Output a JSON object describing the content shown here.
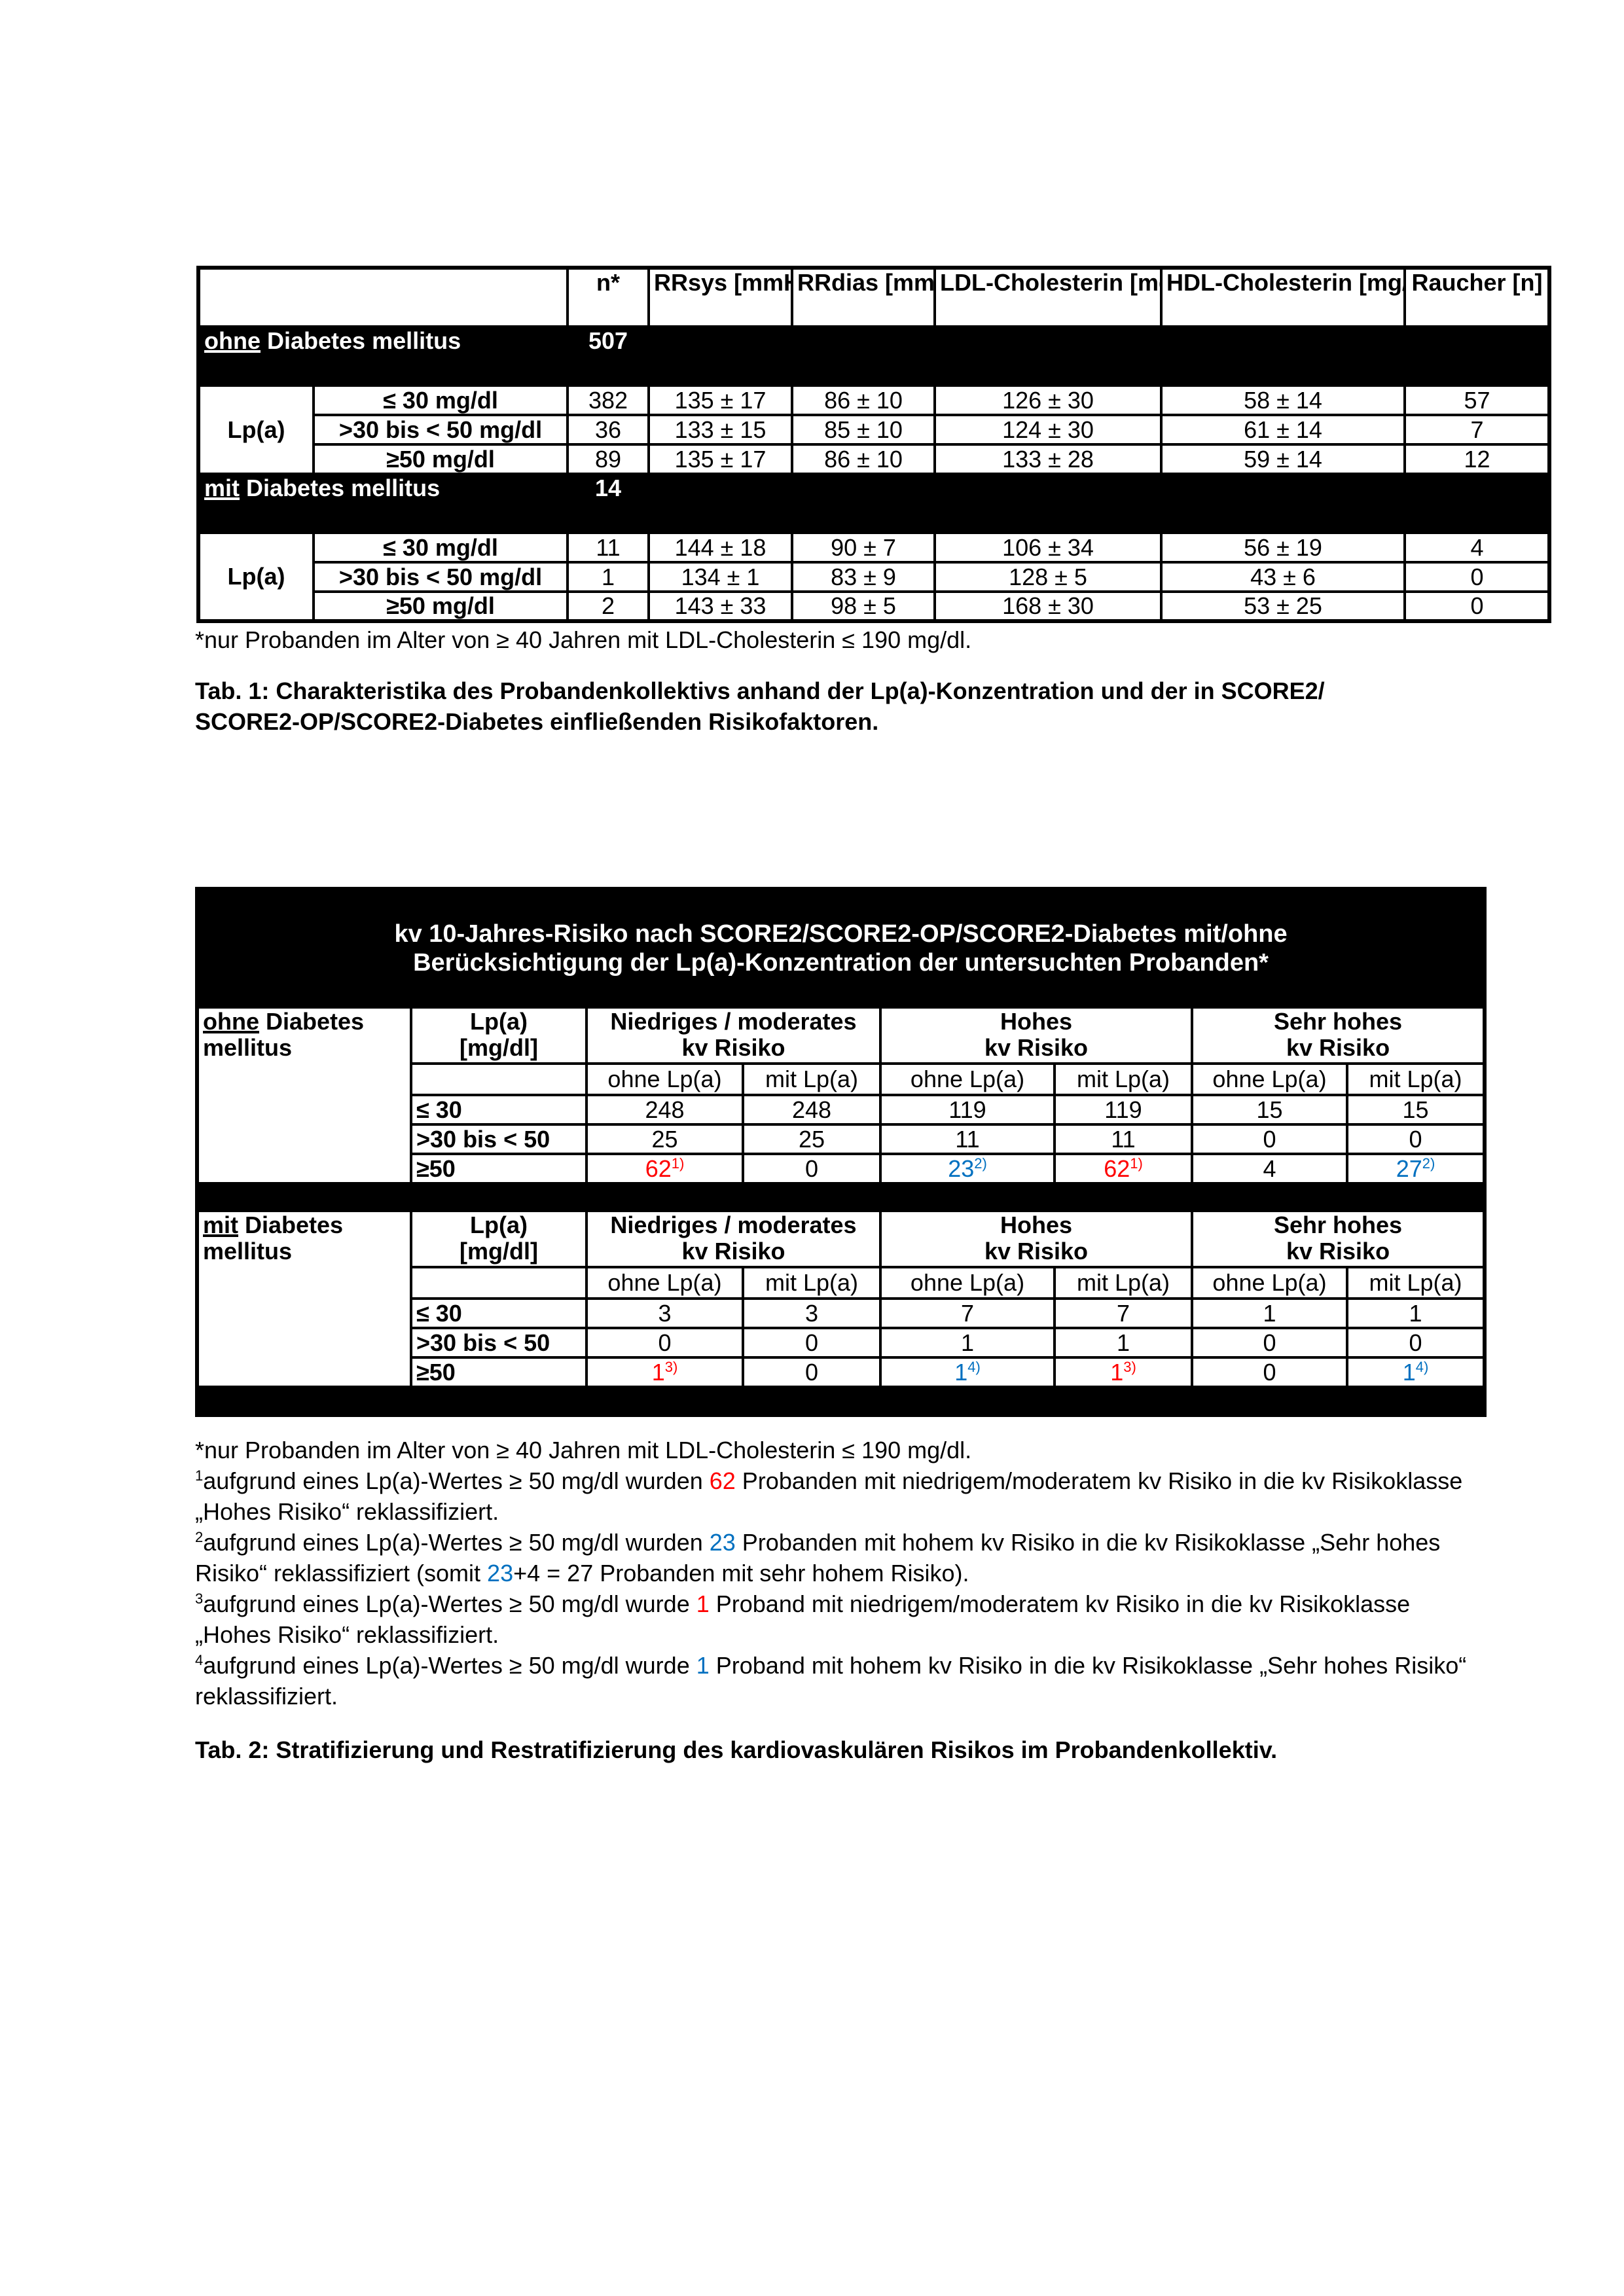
{
  "table1": {
    "headers": [
      "n*",
      "RRsys [mmHg]",
      "RRdias [mmHg]",
      "LDL-Cholesterin [mg/dl]",
      "HDL-Cholesterin [mg/dl]",
      "Raucher [n]"
    ],
    "groups": [
      {
        "prefix": "ohne",
        "label": " Diabetes mellitus",
        "n": "507",
        "lp_label": "Lp(a)",
        "rows": [
          {
            "cat": "≤ 30 mg/dl",
            "cells": [
              "382",
              "135 ± 17",
              "86 ± 10",
              "126 ± 30",
              "58 ± 14",
              "57"
            ]
          },
          {
            "cat": ">30 bis < 50 mg/dl",
            "cells": [
              "36",
              "133 ± 15",
              "85 ± 10",
              "124 ± 30",
              "61 ± 14",
              "7"
            ]
          },
          {
            "cat": "≥50 mg/dl",
            "cells": [
              "89",
              "135 ± 17",
              "86 ± 10",
              "133 ± 28",
              "59 ± 14",
              "12"
            ]
          }
        ]
      },
      {
        "prefix": "mit",
        "label": " Diabetes mellitus",
        "n": "14",
        "lp_label": "Lp(a)",
        "rows": [
          {
            "cat": "≤ 30 mg/dl",
            "cells": [
              "11",
              "144 ± 18",
              "90 ± 7",
              "106 ± 34",
              "56 ± 19",
              "4"
            ]
          },
          {
            "cat": ">30 bis < 50 mg/dl",
            "cells": [
              "1",
              "134 ± 1",
              "83 ± 9",
              "128 ± 5",
              "43 ± 6",
              "0"
            ]
          },
          {
            "cat": "≥50 mg/dl",
            "cells": [
              "2",
              "143 ± 33",
              "98 ± 5",
              "168 ± 30",
              "53 ± 25",
              "0"
            ]
          }
        ]
      }
    ],
    "footnote": "*nur Probanden im Alter von ≥ 40 Jahren mit LDL-Cholesterin ≤ 190 mg/dl.",
    "caption_line1": "Tab. 1: Charakteristika des Probandenkollektivs anhand der Lp(a)-Konzentration und der in SCORE2/",
    "caption_line2": "SCORE2-OP/SCORE2-Diabetes einfließenden Risikofaktoren."
  },
  "table2": {
    "title_line1": "kv 10-Jahres-Risiko nach  SCORE2/SCORE2-OP/SCORE2-Diabetes mit/ohne",
    "title_line2": "Berücksichtigung der Lp(a)-Konzentration der untersuchten Probanden*",
    "lp_header": [
      "Lp(a)",
      "[mg/dl]"
    ],
    "risk_headers": [
      [
        "Niedriges / moderates",
        "kv Risiko"
      ],
      [
        "Hohes",
        "kv Risiko"
      ],
      [
        "Sehr hohes",
        "kv Risiko"
      ]
    ],
    "sub_headers": [
      "ohne Lp(a)",
      "mit Lp(a)"
    ],
    "colors": {
      "red": "#ff0000",
      "blue": "#0070c0"
    },
    "groups": [
      {
        "prefix": "ohne",
        "label_rest": " Diabetes",
        "label_line2": "mellitus",
        "rows": [
          {
            "cat": "≤ 30",
            "cells": [
              {
                "v": "248"
              },
              {
                "v": "248"
              },
              {
                "v": "119"
              },
              {
                "v": "119"
              },
              {
                "v": "15"
              },
              {
                "v": "15"
              }
            ]
          },
          {
            "cat": ">30 bis < 50",
            "cells": [
              {
                "v": "25"
              },
              {
                "v": "25"
              },
              {
                "v": "11"
              },
              {
                "v": "11"
              },
              {
                "v": "0"
              },
              {
                "v": "0"
              }
            ]
          },
          {
            "cat": "≥50",
            "cells": [
              {
                "v": "62",
                "sup": "1)",
                "color": "red"
              },
              {
                "v": "0"
              },
              {
                "v": "23",
                "sup": "2)",
                "color": "blue"
              },
              {
                "v": "62",
                "sup": "1)",
                "color": "red"
              },
              {
                "v": "4"
              },
              {
                "v": "27",
                "sup": "2)",
                "color": "blue"
              }
            ]
          }
        ]
      },
      {
        "prefix": "mit",
        "label_rest": " Diabetes",
        "label_line2": "mellitus",
        "rows": [
          {
            "cat": "≤ 30",
            "cells": [
              {
                "v": "3"
              },
              {
                "v": "3"
              },
              {
                "v": "7"
              },
              {
                "v": "7"
              },
              {
                "v": "1"
              },
              {
                "v": "1"
              }
            ]
          },
          {
            "cat": ">30 bis < 50",
            "cells": [
              {
                "v": "0"
              },
              {
                "v": "0"
              },
              {
                "v": "1"
              },
              {
                "v": "1"
              },
              {
                "v": "0"
              },
              {
                "v": "0"
              }
            ]
          },
          {
            "cat": "≥50",
            "cells": [
              {
                "v": "1",
                "sup": "3)",
                "color": "red"
              },
              {
                "v": "0"
              },
              {
                "v": "1",
                "sup": "4)",
                "color": "blue"
              },
              {
                "v": "1",
                "sup": "3)",
                "color": "red"
              },
              {
                "v": "0"
              },
              {
                "v": "1",
                "sup": "4)",
                "color": "blue"
              }
            ]
          }
        ]
      }
    ],
    "footnotes": [
      {
        "segments": [
          {
            "t": "*nur Probanden im Alter von ≥ 40 Jahren mit LDL-Cholesterin ≤ 190 mg/dl."
          }
        ]
      },
      {
        "sup": "1",
        "segments": [
          {
            "t": "aufgrund eines Lp(a)-Wertes ≥ 50 mg/dl wurden "
          },
          {
            "t": "62",
            "color": "red"
          },
          {
            "t": " Probanden mit niedrigem/moderatem kv Risiko in die kv Risikoklasse „Hohes Risiko“ reklassifiziert."
          }
        ]
      },
      {
        "sup": "2",
        "segments": [
          {
            "t": "aufgrund eines Lp(a)-Wertes ≥ 50 mg/dl wurden "
          },
          {
            "t": "23",
            "color": "blue"
          },
          {
            "t": " Probanden mit hohem kv Risiko in die kv Risikoklasse „Sehr hohes Risiko“ reklassifiziert (somit "
          },
          {
            "t": "23",
            "color": "blue"
          },
          {
            "t": "+4 = 27 Probanden mit sehr hohem Risiko)."
          }
        ]
      },
      {
        "sup": "3",
        "segments": [
          {
            "t": "aufgrund eines Lp(a)-Wertes ≥ 50 mg/dl wurde "
          },
          {
            "t": "1",
            "color": "red"
          },
          {
            "t": " Proband mit niedrigem/moderatem kv Risiko in die kv Risikoklasse „Hohes Risiko“ reklassifiziert."
          }
        ]
      },
      {
        "sup": "4",
        "segments": [
          {
            "t": "aufgrund eines Lp(a)-Wertes ≥ 50 mg/dl wurde "
          },
          {
            "t": "1",
            "color": "blue"
          },
          {
            "t": " Proband mit hohem kv Risiko in die kv Risikoklasse „Sehr hohes Risiko“ reklassifiziert."
          }
        ]
      }
    ],
    "caption": "Tab. 2: Stratifizierung und Restratifizierung des kardiovaskulären Risikos im Probandenkollektiv."
  }
}
